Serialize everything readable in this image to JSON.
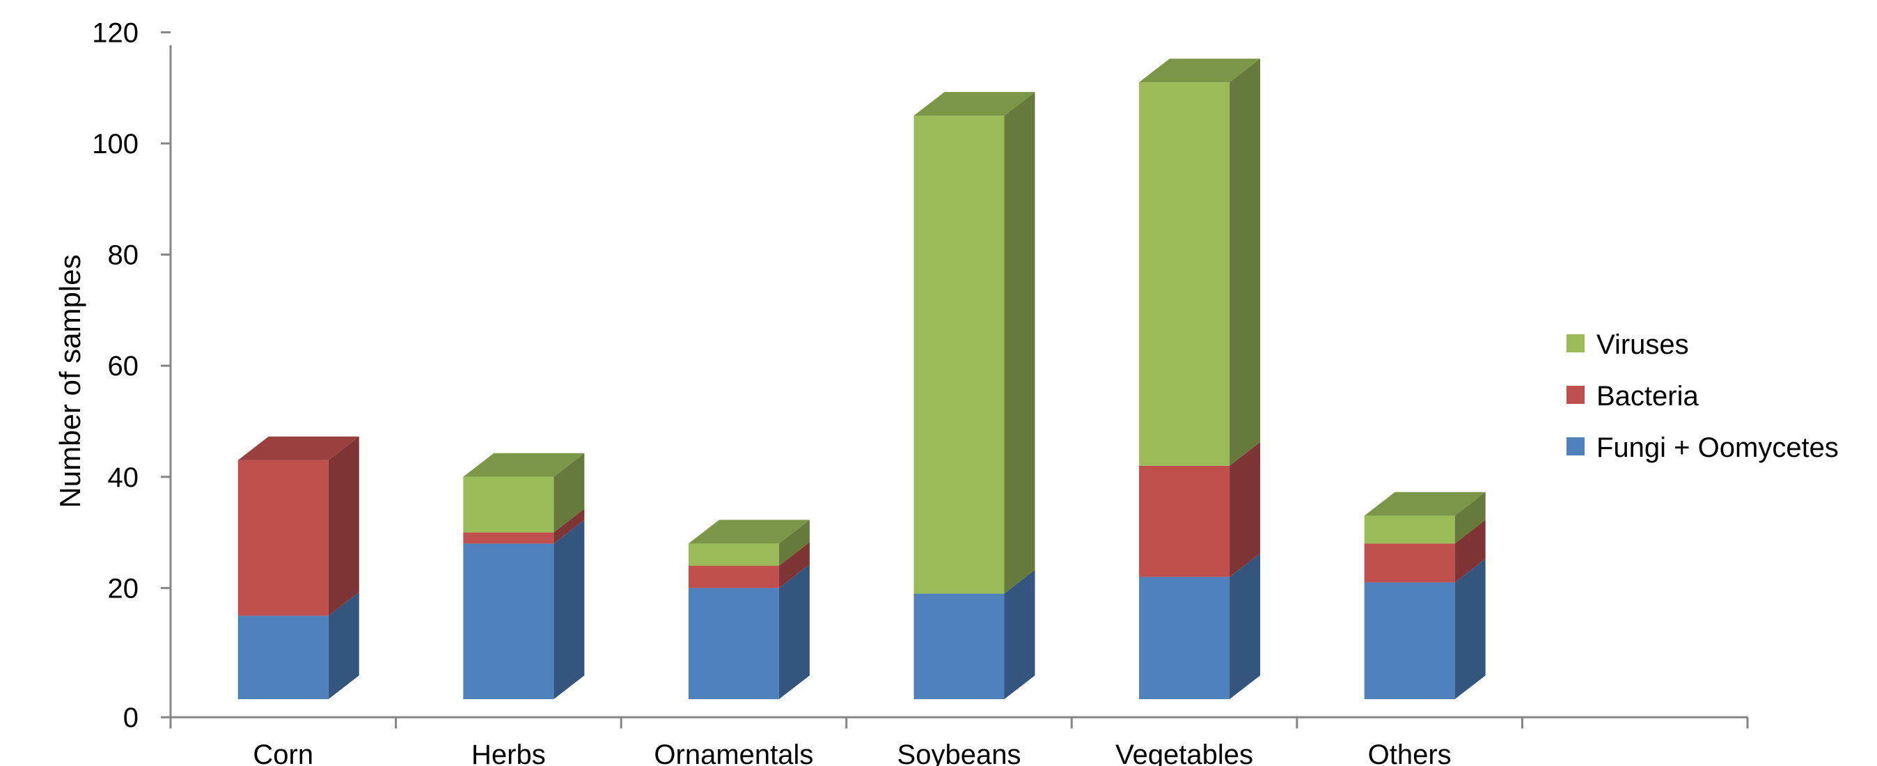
{
  "chart_data": {
    "type": "bar",
    "stacked": true,
    "style": "3d",
    "categories": [
      "Corn",
      "Herbs",
      "Ornamentals",
      "Soybeans",
      "Vegetables",
      "Others"
    ],
    "series": [
      {
        "name": "Fungi + Oomycetes",
        "values": [
          15,
          28,
          20,
          19,
          22,
          21
        ],
        "color": "#4F81BD"
      },
      {
        "name": "Bacteria",
        "values": [
          28,
          2,
          4,
          0,
          20,
          7
        ],
        "color": "#C0504D"
      },
      {
        "name": "Viruses",
        "values": [
          0,
          10,
          4,
          86,
          69,
          5
        ],
        "color": "#9BBB59"
      }
    ],
    "xlabel": "",
    "ylabel": "Number of samples",
    "ylim": [
      0,
      120
    ],
    "yticks": [
      0,
      20,
      40,
      60,
      80,
      100,
      120
    ],
    "grid": false,
    "legend_position": "right",
    "legend_order": [
      "Viruses",
      "Bacteria",
      "Fungi + Oomycetes"
    ]
  }
}
